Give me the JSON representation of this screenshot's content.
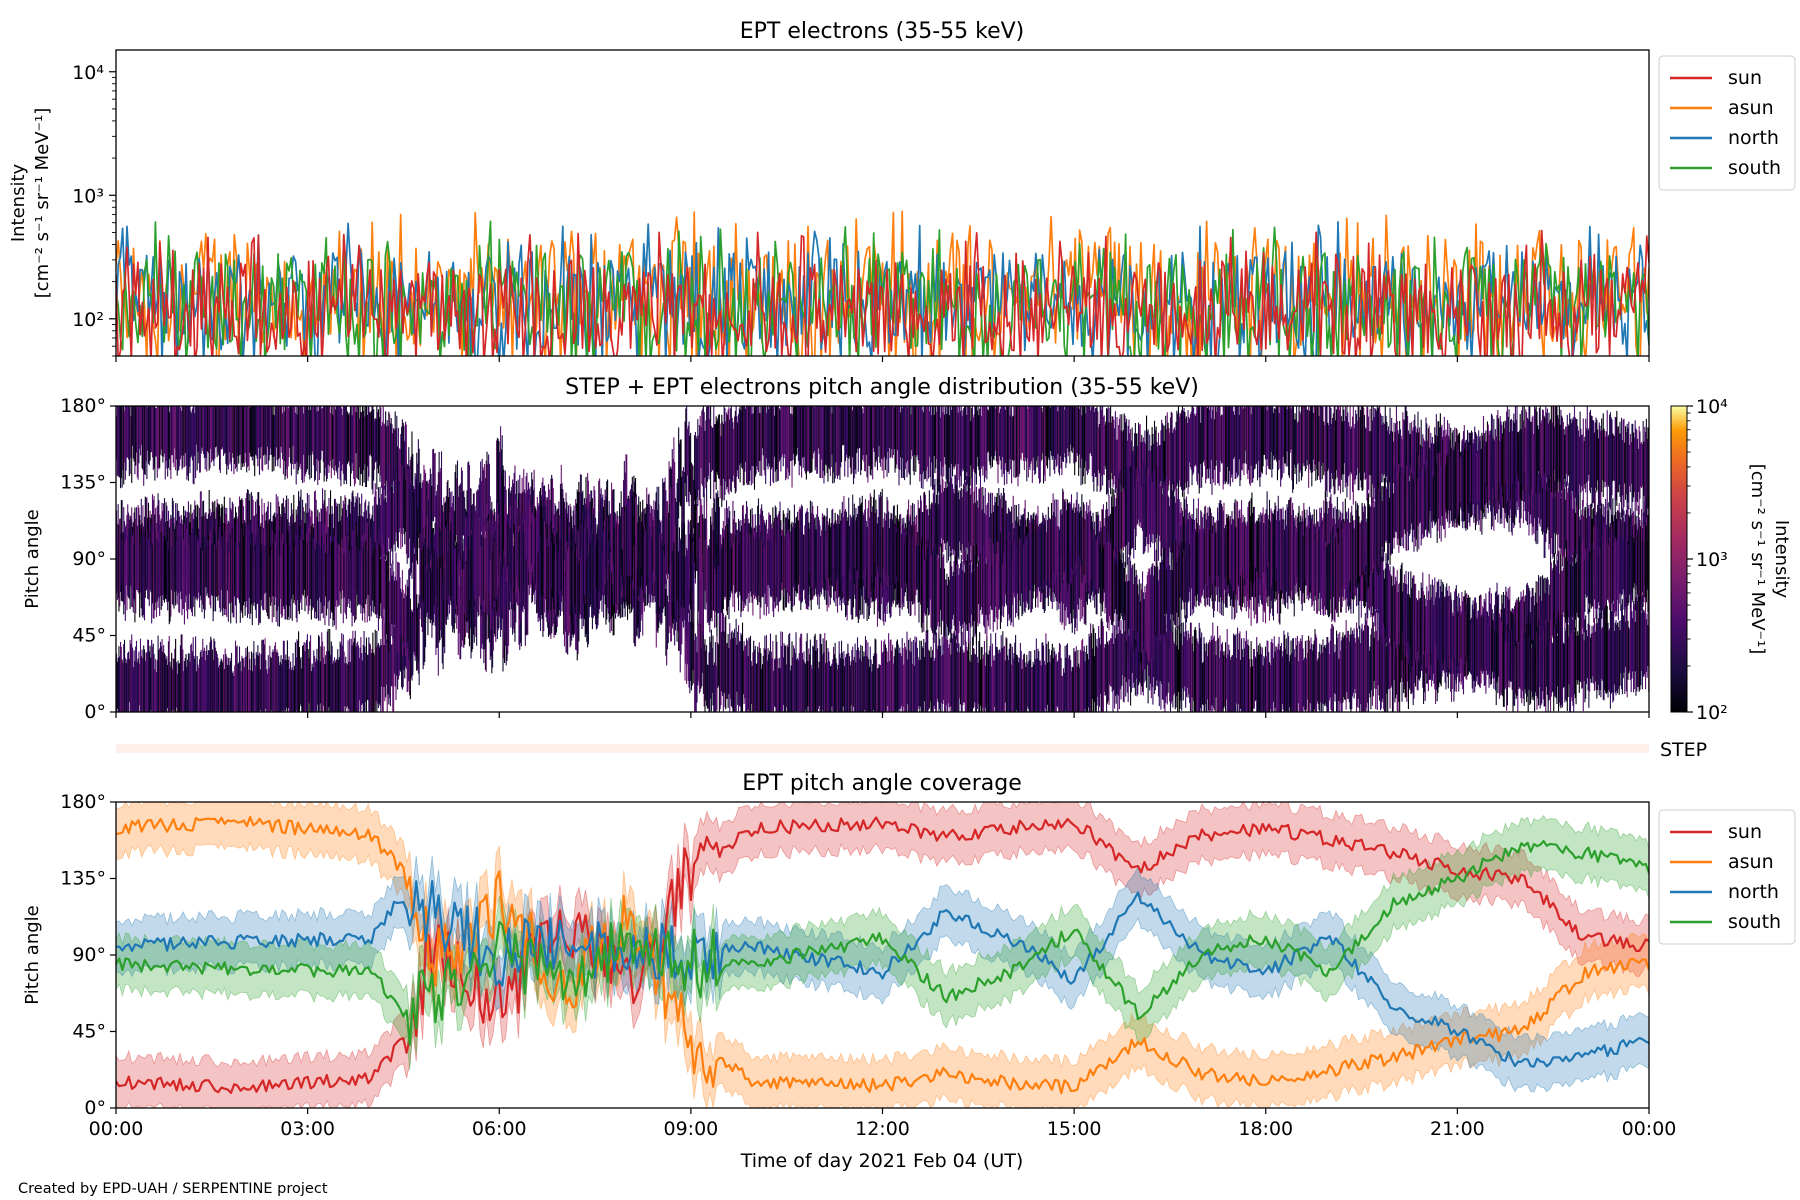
{
  "footer": "Created by EPD-UAH / SERPENTINE project",
  "colors": {
    "sun": "#d62728",
    "asun": "#ff7f0e",
    "north": "#1f77b4",
    "south": "#2ca02c",
    "step_strip": "#fdf0ea"
  },
  "chart_data": [
    {
      "id": "intensity",
      "type": "line",
      "title": "EPT electrons (35-55 keV)",
      "ylabel_line1": "Intensity",
      "ylabel_line2": "[cm⁻² s⁻¹ sr⁻¹ MeV⁻¹]",
      "yscale": "log",
      "ylim": [
        50,
        15000
      ],
      "yticks": [
        {
          "value": 100,
          "label": "10²"
        },
        {
          "value": 1000,
          "label": "10³"
        },
        {
          "value": 10000,
          "label": "10⁴"
        }
      ],
      "xlim_hours": [
        0,
        24
      ],
      "legend_position": "outside-right",
      "series": [
        {
          "name": "sun",
          "color_key": "sun",
          "typical_range": [
            50,
            300
          ],
          "peak_max": 520
        },
        {
          "name": "asun",
          "color_key": "asun",
          "typical_range": [
            60,
            450
          ],
          "peak_max": 760
        },
        {
          "name": "north",
          "color_key": "north",
          "typical_range": [
            55,
            350
          ],
          "peak_max": 620
        },
        {
          "name": "south",
          "color_key": "south",
          "typical_range": [
            55,
            350
          ],
          "peak_max": 620
        }
      ]
    },
    {
      "id": "pad",
      "type": "heatmap",
      "title": "STEP + EPT electrons pitch angle distribution (35-55 keV)",
      "ylabel": "Pitch angle",
      "ylim": [
        0,
        180
      ],
      "yticks": [
        "0°",
        "45°",
        "90°",
        "135°",
        "180°"
      ],
      "xlim_hours": [
        0,
        24
      ],
      "colorbar": {
        "scale": "log",
        "range": [
          100,
          10000
        ],
        "ticks": [
          {
            "value": 100,
            "label": "10²"
          },
          {
            "value": 1000,
            "label": "10³"
          },
          {
            "value": 10000,
            "label": "10⁴"
          }
        ],
        "label_line1": "Intensity",
        "label_line2": "[cm⁻² s⁻¹ sr⁻¹ MeV⁻¹]",
        "colormap": "inferno"
      },
      "step_label": "STEP"
    },
    {
      "id": "coverage",
      "type": "line",
      "title": "EPT pitch angle coverage",
      "ylabel": "Pitch angle",
      "xlabel": "Time of day 2021 Feb 04 (UT)",
      "ylim": [
        0,
        180
      ],
      "yticks": [
        "0°",
        "45°",
        "90°",
        "135°",
        "180°"
      ],
      "xlim_hours": [
        0,
        24
      ],
      "xticks": [
        "00:00",
        "03:00",
        "06:00",
        "09:00",
        "12:00",
        "15:00",
        "18:00",
        "21:00",
        "00:00"
      ],
      "legend_position": "outside-right",
      "band_halfwidth_deg": 15,
      "series": [
        {
          "name": "sun",
          "color_key": "sun",
          "hours": [
            0,
            2,
            4,
            4.5,
            5,
            6,
            7,
            8,
            9,
            10,
            12,
            13,
            14,
            15,
            16,
            17,
            18,
            19,
            20,
            21,
            22,
            23,
            24
          ],
          "angles": [
            15,
            12,
            18,
            40,
            95,
            60,
            110,
            70,
            140,
            165,
            167,
            160,
            165,
            168,
            140,
            160,
            165,
            158,
            150,
            140,
            135,
            100,
            95
          ]
        },
        {
          "name": "asun",
          "color_key": "asun",
          "hours": [
            0,
            2,
            4,
            4.5,
            5,
            6,
            7,
            8,
            9,
            10,
            12,
            13,
            14,
            15,
            16,
            17,
            18,
            19,
            20,
            21,
            22,
            23,
            24
          ],
          "angles": [
            165,
            168,
            160,
            140,
            85,
            120,
            70,
            110,
            40,
            15,
            13,
            20,
            15,
            12,
            40,
            20,
            15,
            22,
            30,
            40,
            45,
            80,
            85
          ]
        },
        {
          "name": "north",
          "color_key": "north",
          "hours": [
            0,
            2,
            4,
            4.5,
            5,
            6,
            7,
            8,
            9,
            10,
            12,
            13,
            14,
            15,
            16,
            17,
            18,
            19,
            20,
            21,
            22,
            23,
            24
          ],
          "angles": [
            95,
            98,
            100,
            125,
            115,
            90,
            100,
            85,
            95,
            95,
            80,
            115,
            100,
            75,
            125,
            90,
            80,
            100,
            60,
            45,
            25,
            30,
            40
          ]
        },
        {
          "name": "south",
          "color_key": "south",
          "hours": [
            0,
            2,
            4,
            4.5,
            5,
            6,
            7,
            8,
            9,
            10,
            12,
            13,
            14,
            15,
            16,
            17,
            18,
            19,
            20,
            21,
            22,
            23,
            24
          ],
          "angles": [
            85,
            82,
            80,
            55,
            65,
            90,
            80,
            95,
            85,
            85,
            100,
            65,
            80,
            105,
            55,
            90,
            100,
            80,
            120,
            135,
            155,
            150,
            140
          ]
        }
      ]
    }
  ]
}
